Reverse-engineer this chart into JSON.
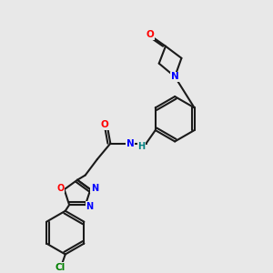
{
  "bg_color": "#e8e8e8",
  "bond_color": "#1a1a1a",
  "N_color": "#0000ff",
  "O_color": "#ff0000",
  "Cl_color": "#008000",
  "H_color": "#008080",
  "line_width": 1.5,
  "fig_size": [
    3.0,
    3.0
  ],
  "dpi": 100,
  "xlim": [
    0,
    10
  ],
  "ylim": [
    0,
    10
  ]
}
